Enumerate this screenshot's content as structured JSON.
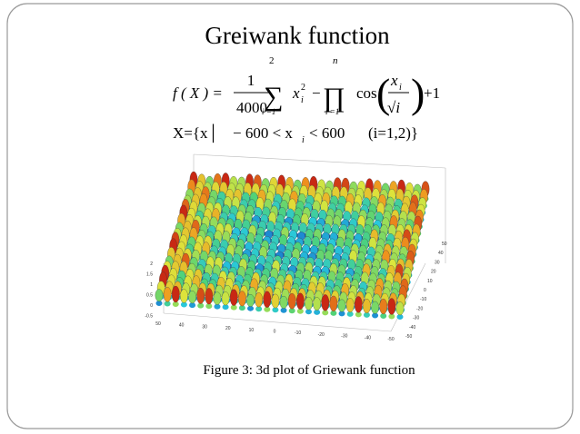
{
  "slide": {
    "title": "Greiwank function",
    "formula": {
      "lhs": "f ( X ) =",
      "numerator": "1",
      "denominator": "4000",
      "sum_upper": "2",
      "sum_lower": "i =1",
      "x": "x",
      "x_sub": "i",
      "x_sup": "2",
      "minus": "−",
      "prod_upper": "n",
      "prod_lower": "i =1",
      "cos": "cos",
      "frac_x": "x",
      "frac_x_sub": "i",
      "frac_den": "√i",
      "plus_one": "+1"
    },
    "domain": {
      "set_open": "X={x│",
      "lower": "− 600 < x",
      "sub": "i",
      "upper": "< 600",
      "index_range": "(i=1,2)}"
    },
    "plot": {
      "z_ticks": [
        "2",
        "1.5",
        "1",
        "0.5",
        "0",
        "-0.5"
      ],
      "x_ticks": [
        "50",
        "40",
        "30",
        "20",
        "10",
        "0",
        "-10",
        "-20",
        "-30",
        "-40",
        "-50"
      ],
      "y_ticks": [
        "50",
        "40",
        "30",
        "20",
        "10",
        "0",
        "-10",
        "-20",
        "-30",
        "-40",
        "-50"
      ]
    },
    "caption": "Figure 3: 3d plot of Griewank function"
  }
}
